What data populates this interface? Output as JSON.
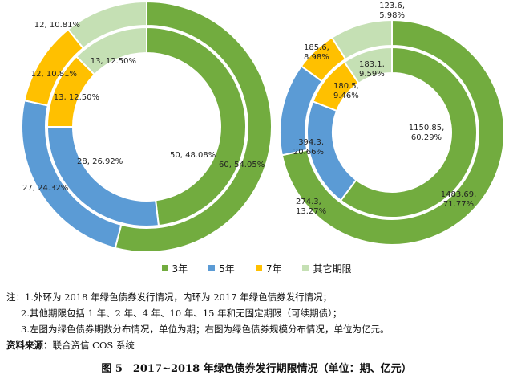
{
  "chart_data": [
    {
      "type": "pie",
      "series": [
        {
          "ring": "outer",
          "values": [
            60,
            27,
            12,
            12
          ],
          "labels": [
            "60, 54.05%",
            "27, 24.32%",
            "12, 10.81%",
            "12, 10.81%"
          ]
        },
        {
          "ring": "inner",
          "values": [
            50,
            28,
            13,
            13
          ],
          "labels": [
            "50, 48.08%",
            "28, 26.92%",
            "13, 12.50%",
            "13, 12.50%"
          ]
        }
      ]
    },
    {
      "type": "pie",
      "series": [
        {
          "ring": "outer",
          "values": [
            1483.69,
            274.3,
            123.6,
            185.6
          ],
          "labels": [
            "1483.69,\n71.77%",
            "274.3,\n13.27%",
            "123.6,\n5.98%",
            "185.6,\n8.98%"
          ]
        },
        {
          "ring": "inner",
          "values": [
            1150.85,
            394.3,
            183.1,
            180.5
          ],
          "labels": [
            "1150.85,\n60.29%",
            "394.3,\n20.66%",
            "183.1,\n9.59%",
            "180.5,\n9.46%"
          ]
        }
      ]
    }
  ],
  "legend": [
    {
      "name": "3年",
      "color": "#72ac3f"
    },
    {
      "name": "5年",
      "color": "#5b9bd5"
    },
    {
      "name": "7年",
      "color": "#ffc000"
    },
    {
      "name": "其它期限",
      "color": "#c5e0b4"
    }
  ],
  "notes": {
    "line1": "注：1.外环为 2018 年绿色债券发行情况，内环为 2017 年绿色债券发行情况；",
    "line2": "2.其他期限包括 1 年、2 年、4 年、10 年、15 年和无固定期限（可续期债）；",
    "line3": "3.左图为绿色债券期数分布情况，单位为期；右图为绿色债券规模分布情况，单位为亿元。",
    "source_label": "资料来源：",
    "source_value": "联合资信 COS 系统"
  },
  "caption": "图 5　2017~2018 年绿色债券发行期限情况（单位：期、亿元）"
}
